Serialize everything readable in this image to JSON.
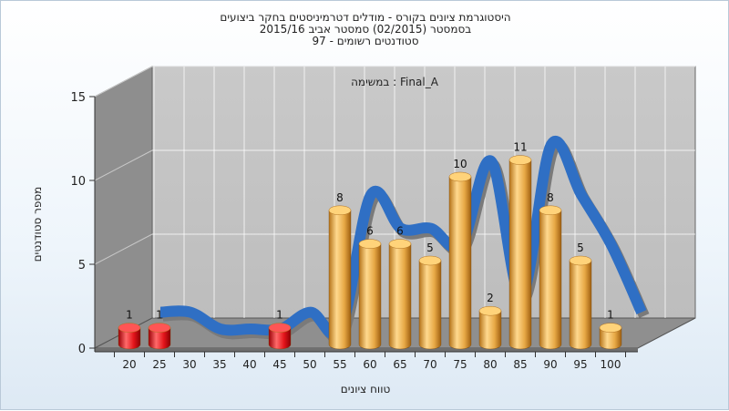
{
  "chart_data": {
    "type": "bar",
    "title_lines": [
      "היסטוגרמת ציונים בקורס - מודלים דטרמיניסטים בחקר ביצועים",
      "בסמסטר  (02/2015)  סמסטר אביב 2015/16",
      "סטודנטים רשומים - 97"
    ],
    "annotation": "במשימה : Final_A",
    "xlabel": "טווח ציונים",
    "ylabel": "מספר סטודנטים",
    "categories": [
      "20",
      "25",
      "30",
      "35",
      "40",
      "45",
      "50",
      "55",
      "60",
      "65",
      "70",
      "75",
      "80",
      "85",
      "90",
      "95",
      "100"
    ],
    "values": [
      1,
      1,
      0,
      0,
      0,
      1,
      0,
      8,
      6,
      6,
      5,
      10,
      2,
      11,
      8,
      5,
      1
    ],
    "y_ticks": [
      0,
      5,
      10,
      15
    ],
    "ylim": [
      0,
      15
    ],
    "grid": true,
    "colors": {
      "fail_bar": "#e0141b",
      "pass_bar": "#e3a33e",
      "trend_line": "#2f6fc4",
      "trend_line_back": "#7a7a7a",
      "wall": "#8e8e8e",
      "back_wall": "#c4c4c4",
      "floor": "#8f8f8f"
    }
  }
}
